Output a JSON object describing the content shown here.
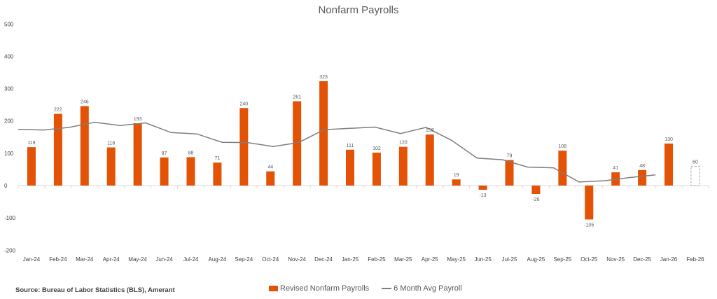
{
  "title": "Nonfarm Payrolls",
  "source": "Source: Bureau of Labor Statistics (BLS), Amerant",
  "legend": {
    "bars": "Revised Nonfarm Payrolls",
    "line": "6 Month Avg Payroll"
  },
  "colors": {
    "bar": "#E35205",
    "line": "#7F7F7F",
    "axis_text": "#404040"
  },
  "chart_data": {
    "type": "bar",
    "title": "Nonfarm Payrolls",
    "xlabel": "",
    "ylabel": "",
    "ylim": [
      -200,
      500
    ],
    "yticks": [
      -200,
      -100,
      0,
      100,
      200,
      300,
      400,
      500
    ],
    "grid": false,
    "legend_position": "bottom",
    "categories": [
      "Jan-24",
      "Feb-24",
      "Mar-24",
      "Apr-24",
      "May-24",
      "Jun-24",
      "Jul-24",
      "Aug-24",
      "Sep-24",
      "Oct-24",
      "Nov-24",
      "Dec-24",
      "Jan-25",
      "Feb-25",
      "Mar-25",
      "Apr-25",
      "May-25",
      "Jun-25",
      "Jul-25",
      "Aug-25",
      "Sep-25",
      "Oct-25",
      "Nov-25",
      "Dec-25",
      "Jan-26",
      "Feb-26"
    ],
    "series": [
      {
        "name": "Revised Nonfarm Payrolls",
        "type": "bar",
        "values": [
          119,
          222,
          246,
          118,
          193,
          87,
          88,
          71,
          240,
          44,
          261,
          323,
          111,
          102,
          120,
          158,
          19,
          -13,
          79,
          -26,
          108,
          -105,
          41,
          48,
          130,
          60
        ],
        "note": "Feb-26 (60) shown as dashed outline estimate"
      },
      {
        "name": "6 Month Avg Payroll",
        "type": "line",
        "values": [
          174,
          172,
          180,
          196,
          186,
          194,
          164,
          160,
          134,
          133,
          121,
          133,
          173,
          177,
          181,
          161,
          180,
          140,
          85,
          80,
          57,
          55,
          11,
          15,
          25,
          33
        ]
      }
    ]
  }
}
